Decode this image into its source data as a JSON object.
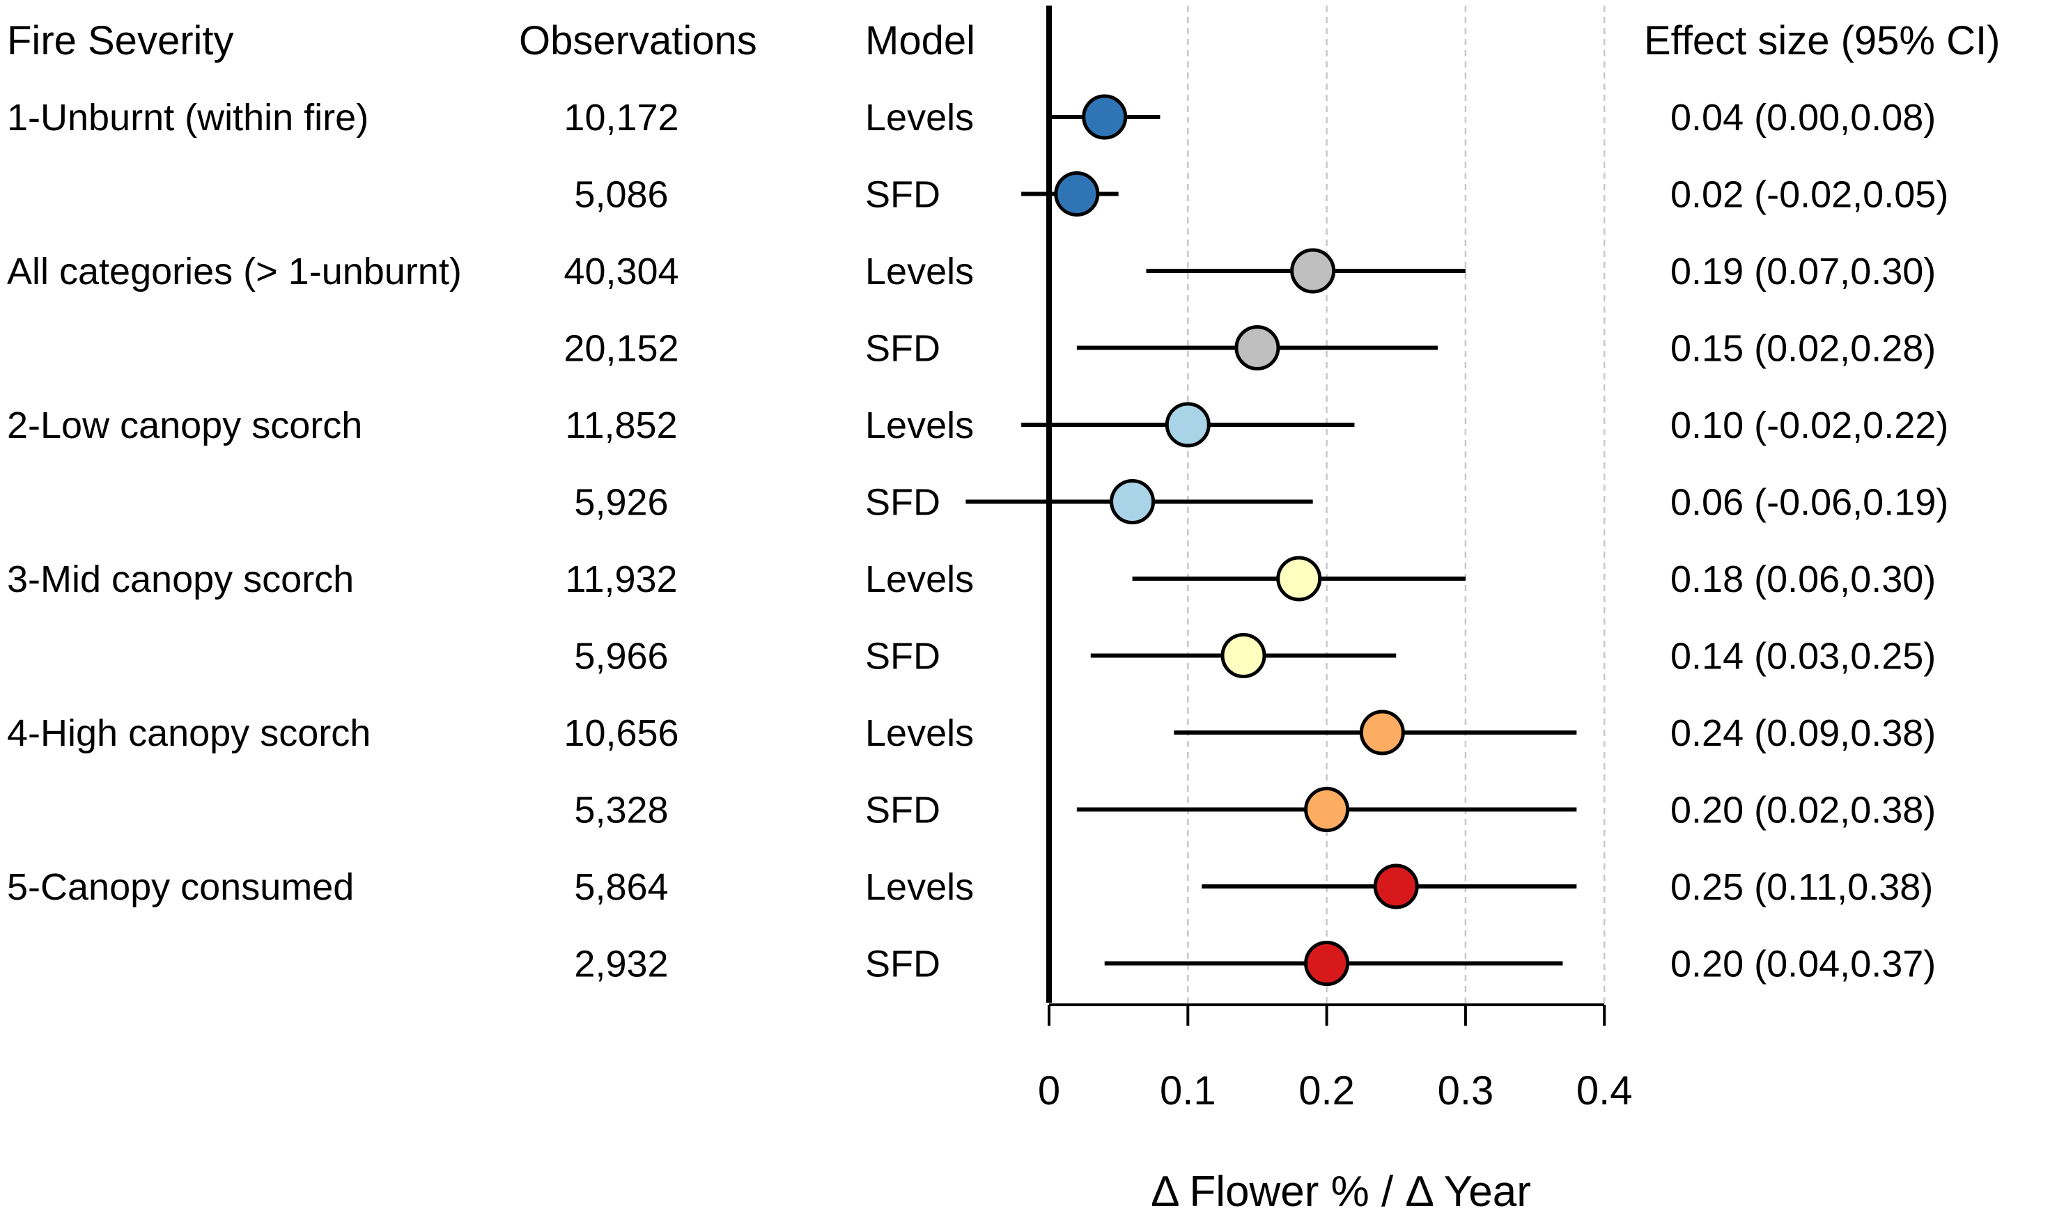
{
  "chart_data": {
    "type": "forest",
    "headers": {
      "severity": "Fire Severity",
      "observations": "Observations",
      "model": "Model",
      "effect": "Effect size (95% CI)"
    },
    "xlabel": "Δ Flower % /  Δ Year",
    "xlim": [
      0,
      0.4
    ],
    "xticks": [
      {
        "value": 0,
        "label": "0"
      },
      {
        "value": 0.1,
        "label": "0.1"
      },
      {
        "value": 0.2,
        "label": "0.2"
      },
      {
        "value": 0.3,
        "label": "0.3"
      },
      {
        "value": 0.4,
        "label": "0.4"
      }
    ],
    "gridlines": [
      0.1,
      0.2,
      0.3,
      0.4
    ],
    "rows": [
      {
        "severity": "1-Unburnt (within fire)",
        "observations": "10,172",
        "model": "Levels",
        "estimate": 0.04,
        "lower": 0.0,
        "upper": 0.08,
        "label": "0.04 (0.00,0.08)",
        "color": "#2f75b5"
      },
      {
        "severity": "",
        "observations": "5,086",
        "model": "SFD",
        "estimate": 0.02,
        "lower": -0.02,
        "upper": 0.05,
        "label": "0.02 (-0.02,0.05)",
        "color": "#2f75b5"
      },
      {
        "severity": "All categories (> 1-unburnt)",
        "observations": "40,304",
        "model": "Levels",
        "estimate": 0.19,
        "lower": 0.07,
        "upper": 0.3,
        "label": "0.19 (0.07,0.30)",
        "color": "#bfbfbf"
      },
      {
        "severity": "",
        "observations": "20,152",
        "model": "SFD",
        "estimate": 0.15,
        "lower": 0.02,
        "upper": 0.28,
        "label": "0.15 (0.02,0.28)",
        "color": "#bfbfbf"
      },
      {
        "severity": "2-Low canopy scorch",
        "observations": "11,852",
        "model": "Levels",
        "estimate": 0.1,
        "lower": -0.02,
        "upper": 0.22,
        "label": "0.10 (-0.02,0.22)",
        "color": "#a9d4e8"
      },
      {
        "severity": "",
        "observations": "5,926",
        "model": "SFD",
        "estimate": 0.06,
        "lower": -0.06,
        "upper": 0.19,
        "label": "0.06 (-0.06,0.19)",
        "color": "#a9d4e8"
      },
      {
        "severity": "3-Mid canopy scorch",
        "observations": "11,932",
        "model": "Levels",
        "estimate": 0.18,
        "lower": 0.06,
        "upper": 0.3,
        "label": "0.18 (0.06,0.30)",
        "color": "#ffffc0"
      },
      {
        "severity": "",
        "observations": "5,966",
        "model": "SFD",
        "estimate": 0.14,
        "lower": 0.03,
        "upper": 0.25,
        "label": "0.14 (0.03,0.25)",
        "color": "#ffffc0"
      },
      {
        "severity": "4-High canopy scorch",
        "observations": "10,656",
        "model": "Levels",
        "estimate": 0.24,
        "lower": 0.09,
        "upper": 0.38,
        "label": "0.24 (0.09,0.38)",
        "color": "#fcad62"
      },
      {
        "severity": "",
        "observations": "5,328",
        "model": "SFD",
        "estimate": 0.2,
        "lower": 0.02,
        "upper": 0.38,
        "label": "0.20 (0.02,0.38)",
        "color": "#fcad62"
      },
      {
        "severity": "5-Canopy consumed",
        "observations": "5,864",
        "model": "Levels",
        "estimate": 0.25,
        "lower": 0.11,
        "upper": 0.38,
        "label": "0.25 (0.11,0.38)",
        "color": "#d7191c"
      },
      {
        "severity": "",
        "observations": "2,932",
        "model": "SFD",
        "estimate": 0.2,
        "lower": 0.04,
        "upper": 0.37,
        "label": "0.20 (0.04,0.37)",
        "color": "#d7191c"
      }
    ]
  }
}
